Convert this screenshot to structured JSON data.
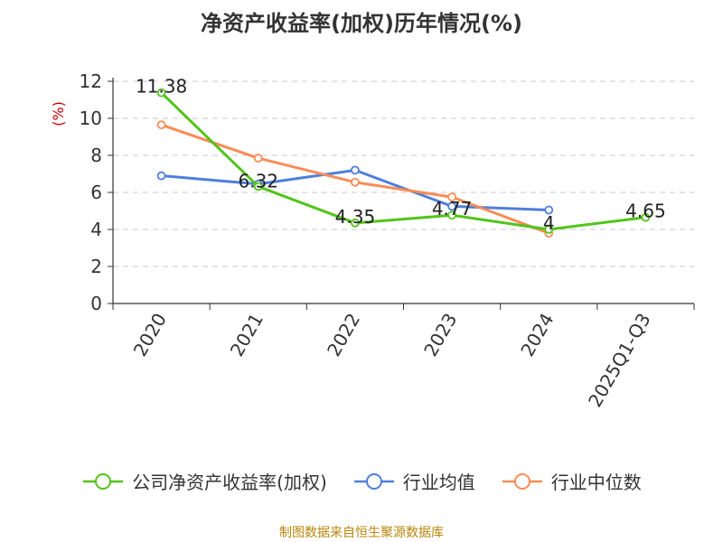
{
  "chart_data": {
    "type": "line",
    "title": "净资产收益率(加权)历年情况(%)",
    "ylabel": "(%)",
    "xlabel": "",
    "categories": [
      "2020",
      "2021",
      "2022",
      "2023",
      "2024",
      "2025Q1-Q3"
    ],
    "ylim": [
      0,
      12
    ],
    "yticks": [
      0,
      2,
      4,
      6,
      8,
      10,
      12
    ],
    "grid": true,
    "legend_position": "bottom",
    "series": [
      {
        "name": "公司净资产收益率(加权)",
        "color": "#52c41a",
        "values": [
          11.38,
          6.32,
          4.35,
          4.77,
          4,
          4.65
        ],
        "labels": [
          "11.38",
          "6.32",
          "4.35",
          "4.77",
          "4",
          "4.65"
        ]
      },
      {
        "name": "行业均值",
        "color": "#4e7fdb",
        "values": [
          6.9,
          6.45,
          7.2,
          5.25,
          5.05,
          null
        ]
      },
      {
        "name": "行业中位数",
        "color": "#fa8c57",
        "values": [
          9.65,
          7.85,
          6.55,
          5.75,
          3.8,
          null
        ]
      }
    ]
  },
  "footer": {
    "source": "制图数据来自恒生聚源数据库"
  }
}
